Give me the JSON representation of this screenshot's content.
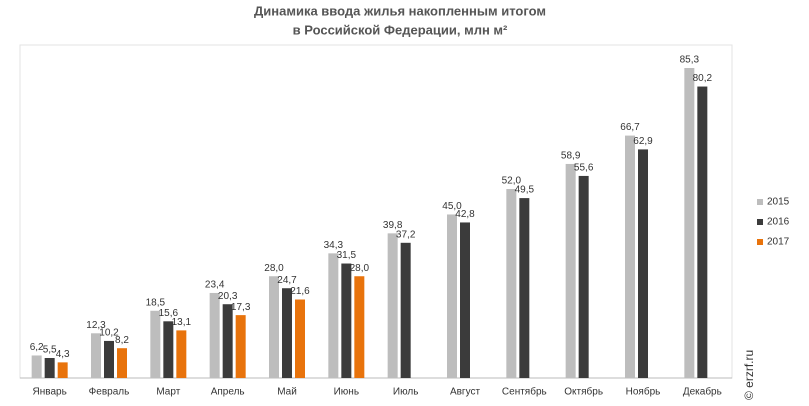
{
  "chart_data": {
    "type": "bar",
    "title": [
      "Динамика ввода жилья накопленным итогом",
      "в Российской  Федерации, млн м²"
    ],
    "categories": [
      "Январь",
      "Февраль",
      "Март",
      "Апрель",
      "Май",
      "Июнь",
      "Июль",
      "Август",
      "Сентябрь",
      "Октябрь",
      "Ноябрь",
      "Декабрь"
    ],
    "series": [
      {
        "name": "2015",
        "color": "#bdbdbd",
        "label_color": "#333333",
        "values": [
          6.2,
          12.3,
          18.5,
          23.4,
          28.0,
          34.3,
          39.8,
          45.0,
          52.0,
          58.9,
          66.7,
          85.3
        ],
        "value_labels": [
          "6,2",
          "12,3",
          "18,5",
          "23,4",
          "28,0",
          "34,3",
          "39,8",
          "45,0",
          "52,0",
          "58,9",
          "66,7",
          "85,3"
        ]
      },
      {
        "name": "2016",
        "color": "#3b3b3b",
        "label_color": "#333333",
        "values": [
          5.5,
          10.2,
          15.6,
          20.3,
          24.7,
          31.5,
          37.2,
          42.8,
          49.5,
          55.6,
          62.9,
          80.2
        ],
        "value_labels": [
          "5,5",
          "10,2",
          "15,6",
          "20,3",
          "24,7",
          "31,5",
          "37,2",
          "42,8",
          "49,5",
          "55,6",
          "62,9",
          "80,2"
        ]
      },
      {
        "name": "2017",
        "color": "#e8730c",
        "label_color": "#e8730c",
        "values": [
          4.3,
          8.2,
          13.1,
          17.3,
          21.6,
          28.0,
          null,
          null,
          null,
          null,
          null,
          null
        ],
        "value_labels": [
          "4,3",
          "8,2",
          "13,1",
          "17,3",
          "21,6",
          "28,0",
          null,
          null,
          null,
          null,
          null,
          null
        ]
      }
    ],
    "watermark": "© erzrf.ru"
  }
}
